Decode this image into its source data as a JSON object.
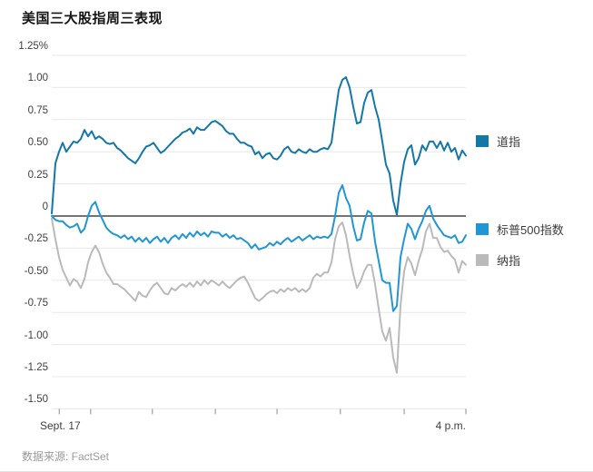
{
  "title": "美国三大股指周三表现",
  "source": "数据来源: FactSet",
  "x_axis": {
    "start_label": "Sept. 17",
    "end_label": "4 p.m."
  },
  "chart_data": {
    "type": "line",
    "title": "美国三大股指周三表现",
    "xlabel": "",
    "ylabel": "",
    "y_unit": "%",
    "ylim": [
      -1.5,
      1.25
    ],
    "x_range": [
      "Sept. 17 9:30 a.m.",
      "4 p.m."
    ],
    "grid": true,
    "legend_position": "right",
    "y_ticks": [
      1.25,
      1.0,
      0.75,
      0.5,
      0.25,
      0,
      -0.25,
      -0.5,
      -0.75,
      -1.0,
      -1.25,
      -1.5
    ],
    "y_tick_labels": [
      "1.25%",
      "1.00",
      "0.75",
      "0.50",
      "0.25",
      "0",
      "-0.25",
      "-0.50",
      "-0.75",
      "-1.00",
      "-1.25",
      "-1.50"
    ],
    "series": [
      {
        "name": "道指",
        "color": "#1477a8",
        "values": [
          0.02,
          0.41,
          0.5,
          0.57,
          0.5,
          0.54,
          0.58,
          0.57,
          0.6,
          0.67,
          0.62,
          0.66,
          0.6,
          0.62,
          0.6,
          0.57,
          0.56,
          0.57,
          0.53,
          0.51,
          0.48,
          0.45,
          0.43,
          0.41,
          0.45,
          0.5,
          0.54,
          0.55,
          0.57,
          0.53,
          0.49,
          0.51,
          0.54,
          0.57,
          0.6,
          0.62,
          0.65,
          0.66,
          0.68,
          0.64,
          0.69,
          0.67,
          0.67,
          0.7,
          0.73,
          0.74,
          0.72,
          0.7,
          0.66,
          0.64,
          0.64,
          0.6,
          0.57,
          0.57,
          0.55,
          0.54,
          0.48,
          0.5,
          0.45,
          0.48,
          0.49,
          0.45,
          0.44,
          0.47,
          0.52,
          0.54,
          0.5,
          0.49,
          0.52,
          0.5,
          0.49,
          0.52,
          0.5,
          0.5,
          0.52,
          0.53,
          0.52,
          0.57,
          0.78,
          0.98,
          1.06,
          1.08,
          1.0,
          0.85,
          0.72,
          0.73,
          0.88,
          0.96,
          0.98,
          0.85,
          0.75,
          0.58,
          0.4,
          0.33,
          0.12,
          0.01,
          0.25,
          0.42,
          0.52,
          0.55,
          0.4,
          0.45,
          0.55,
          0.51,
          0.58,
          0.58,
          0.53,
          0.58,
          0.51,
          0.57,
          0.5,
          0.53,
          0.44,
          0.51,
          0.47
        ]
      },
      {
        "name": "标普500指数",
        "color": "#2196d4",
        "values": [
          0.0,
          -0.03,
          -0.04,
          -0.04,
          -0.07,
          -0.09,
          -0.08,
          -0.06,
          -0.13,
          -0.1,
          0.0,
          0.08,
          0.11,
          0.03,
          -0.03,
          -0.09,
          -0.12,
          -0.14,
          -0.15,
          -0.17,
          -0.15,
          -0.18,
          -0.16,
          -0.2,
          -0.17,
          -0.2,
          -0.17,
          -0.21,
          -0.18,
          -0.16,
          -0.2,
          -0.17,
          -0.21,
          -0.17,
          -0.15,
          -0.18,
          -0.14,
          -0.17,
          -0.13,
          -0.16,
          -0.12,
          -0.15,
          -0.13,
          -0.16,
          -0.12,
          -0.13,
          -0.13,
          -0.16,
          -0.14,
          -0.17,
          -0.15,
          -0.18,
          -0.17,
          -0.19,
          -0.21,
          -0.25,
          -0.22,
          -0.26,
          -0.25,
          -0.24,
          -0.21,
          -0.23,
          -0.2,
          -0.22,
          -0.19,
          -0.17,
          -0.2,
          -0.18,
          -0.16,
          -0.19,
          -0.17,
          -0.15,
          -0.18,
          -0.16,
          -0.17,
          -0.16,
          -0.17,
          -0.14,
          0.0,
          0.18,
          0.24,
          0.14,
          0.08,
          -0.08,
          -0.19,
          -0.18,
          -0.05,
          0.04,
          0.02,
          -0.2,
          -0.35,
          -0.5,
          -0.52,
          -0.52,
          -0.74,
          -0.7,
          -0.32,
          -0.18,
          -0.06,
          -0.1,
          -0.18,
          -0.1,
          -0.04,
          0.04,
          0.08,
          -0.02,
          -0.07,
          -0.11,
          -0.15,
          -0.16,
          -0.17,
          -0.15,
          -0.21,
          -0.2,
          -0.15
        ]
      },
      {
        "name": "纳指",
        "color": "#bababa",
        "values": [
          -0.02,
          -0.18,
          -0.32,
          -0.42,
          -0.48,
          -0.54,
          -0.49,
          -0.51,
          -0.56,
          -0.49,
          -0.36,
          -0.28,
          -0.23,
          -0.28,
          -0.37,
          -0.44,
          -0.48,
          -0.53,
          -0.53,
          -0.55,
          -0.57,
          -0.6,
          -0.63,
          -0.66,
          -0.59,
          -0.62,
          -0.63,
          -0.58,
          -0.54,
          -0.52,
          -0.56,
          -0.6,
          -0.61,
          -0.56,
          -0.58,
          -0.55,
          -0.53,
          -0.55,
          -0.52,
          -0.55,
          -0.51,
          -0.54,
          -0.5,
          -0.53,
          -0.5,
          -0.52,
          -0.54,
          -0.51,
          -0.54,
          -0.56,
          -0.53,
          -0.5,
          -0.48,
          -0.47,
          -0.52,
          -0.58,
          -0.64,
          -0.66,
          -0.64,
          -0.61,
          -0.59,
          -0.58,
          -0.6,
          -0.57,
          -0.59,
          -0.56,
          -0.58,
          -0.56,
          -0.59,
          -0.57,
          -0.59,
          -0.56,
          -0.48,
          -0.45,
          -0.47,
          -0.44,
          -0.44,
          -0.36,
          -0.18,
          -0.08,
          -0.05,
          -0.15,
          -0.31,
          -0.45,
          -0.56,
          -0.51,
          -0.43,
          -0.38,
          -0.38,
          -0.53,
          -0.72,
          -0.9,
          -0.97,
          -0.87,
          -1.1,
          -1.22,
          -0.7,
          -0.43,
          -0.32,
          -0.37,
          -0.46,
          -0.35,
          -0.26,
          -0.12,
          -0.06,
          -0.17,
          -0.17,
          -0.24,
          -0.28,
          -0.27,
          -0.31,
          -0.34,
          -0.44,
          -0.35,
          -0.38
        ]
      }
    ]
  }
}
